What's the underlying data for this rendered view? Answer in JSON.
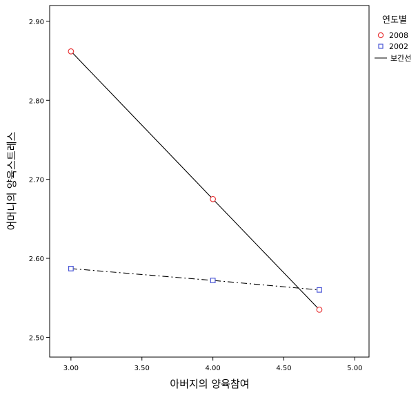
{
  "chart_data": {
    "type": "scatter",
    "xlabel": "아버지의 양육참여",
    "ylabel": "어머니의 양육스트레스",
    "xlim": [
      2.85,
      5.1
    ],
    "ylim": [
      2.475,
      2.92
    ],
    "x_ticks": [
      "3.00",
      "3.50",
      "4.00",
      "4.50",
      "5.00"
    ],
    "y_ticks": [
      "2.50",
      "2.60",
      "2.70",
      "2.80",
      "2.90"
    ],
    "legend": {
      "title": "연도별",
      "items": [
        "2008",
        "2002",
        "보간선"
      ],
      "placement": "right"
    },
    "series": [
      {
        "name": "2008",
        "marker": "circle",
        "color": "#e8393b",
        "line_style": "solid",
        "points": [
          [
            3.0,
            2.862
          ],
          [
            4.0,
            2.675
          ],
          [
            4.75,
            2.535
          ]
        ]
      },
      {
        "name": "2002",
        "marker": "square",
        "color": "#4a56d6",
        "line_style": "dashdot",
        "points": [
          [
            3.0,
            2.587
          ],
          [
            4.0,
            2.572
          ],
          [
            4.75,
            2.56
          ]
        ]
      }
    ],
    "line_color": "#000000",
    "grid": false
  }
}
